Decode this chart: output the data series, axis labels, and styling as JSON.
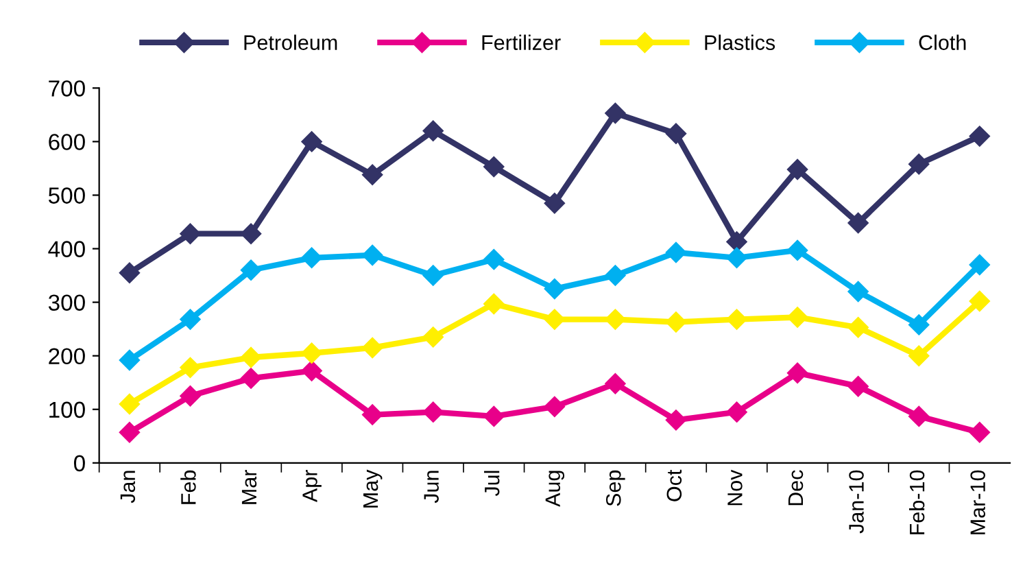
{
  "chart_data": {
    "type": "line",
    "categories": [
      "Jan",
      "Feb",
      "Mar",
      "Apr",
      "May",
      "Jun",
      "Jul",
      "Aug",
      "Sep",
      "Oct",
      "Nov",
      "Dec",
      "Jan-10",
      "Feb-10",
      "Mar-10"
    ],
    "series": [
      {
        "name": "Petroleum",
        "color": "#333366",
        "values": [
          355,
          428,
          428,
          600,
          538,
          620,
          553,
          485,
          653,
          615,
          413,
          548,
          448,
          558,
          610
        ]
      },
      {
        "name": "Fertilizer",
        "color": "#e8008a",
        "values": [
          57,
          125,
          158,
          172,
          90,
          95,
          87,
          105,
          148,
          80,
          95,
          168,
          143,
          87,
          57
        ]
      },
      {
        "name": "Plastics",
        "color": "#ffef00",
        "values": [
          110,
          178,
          197,
          205,
          215,
          235,
          297,
          268,
          268,
          263,
          268,
          272,
          253,
          200,
          302
        ]
      },
      {
        "name": "Cloth",
        "color": "#00b0f0",
        "values": [
          192,
          268,
          360,
          383,
          388,
          350,
          380,
          325,
          350,
          393,
          383,
          397,
          320,
          258,
          370
        ]
      }
    ],
    "ylim": [
      0,
      700
    ],
    "yticks": [
      0,
      100,
      200,
      300,
      400,
      500,
      600,
      700
    ],
    "grid": false,
    "legend": "top",
    "marker": "diamond",
    "line_style": "solid"
  }
}
